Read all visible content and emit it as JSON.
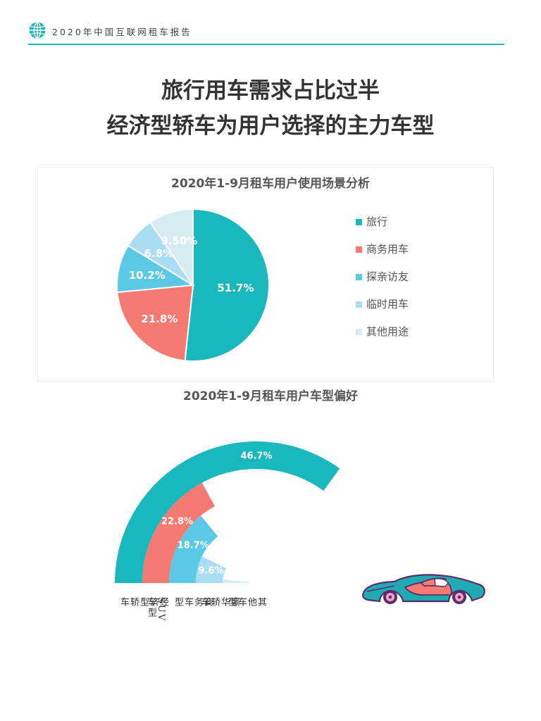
{
  "header": {
    "report_title": "2020年中国互联网租车报告",
    "icon": "globe-icon",
    "accent_color": "#1fb5b8"
  },
  "headline": {
    "line1": "旅行用车需求占比过半",
    "line2": "经济型轿车为用户选择的主力车型"
  },
  "chart_data": [
    {
      "type": "pie",
      "title": "2020年1-9月租车用户使用场景分析",
      "categories": [
        "旅行",
        "商务用车",
        "探亲访友",
        "临时用车",
        "其他用途"
      ],
      "values": [
        51.7,
        21.8,
        10.2,
        6.8,
        9.5
      ],
      "data_labels": [
        "51.7%",
        "21.8%",
        "10.2%",
        "6.8%",
        "9.50%"
      ],
      "colors": [
        "#1ab8bd",
        "#f57a72",
        "#5bc9e6",
        "#a9ddf3",
        "#d6ecf3"
      ],
      "legend": "right"
    },
    {
      "type": "bar",
      "subtype": "radial",
      "title": "2020年1-9月租车用户车型偏好",
      "categories": [
        "经济型轿车",
        "SUV车型",
        "商务车型",
        "豪华轿车",
        "其他车型"
      ],
      "values": [
        46.7,
        22.8,
        18.7,
        9.6,
        2.2
      ],
      "data_labels": [
        "46.7%",
        "22.8%",
        "18.7%",
        "9.6%",
        ""
      ],
      "colors": [
        "#1ab8bd",
        "#f57a72",
        "#5bc9e6",
        "#a9ddf3",
        "#d6ecf3"
      ],
      "scale_max": 66.7
    }
  ],
  "illustration": {
    "icon": "sports-car-icon"
  }
}
